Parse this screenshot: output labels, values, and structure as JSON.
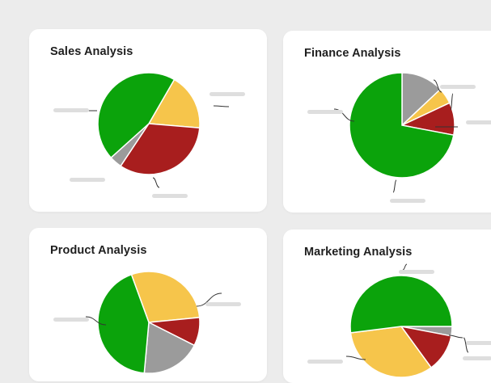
{
  "colors": {
    "green": "#0ba30b",
    "yellow": "#f6c54b",
    "red": "#a81e1e",
    "gray": "#9b9b9b",
    "label_placeholder": "#dedede",
    "leader_line": "#333333"
  },
  "chart_data": [
    {
      "type": "pie",
      "title": "Sales Analysis",
      "slices": [
        {
          "value": 18,
          "color": "yellow"
        },
        {
          "value": 33,
          "color": "red"
        },
        {
          "value": 4,
          "color": "gray"
        },
        {
          "value": 45,
          "color": "green"
        }
      ]
    },
    {
      "type": "pie",
      "title": "Finance Analysis",
      "slices": [
        {
          "value": 13,
          "color": "gray"
        },
        {
          "value": 5,
          "color": "yellow"
        },
        {
          "value": 10,
          "color": "red"
        },
        {
          "value": 72,
          "color": "green"
        }
      ]
    },
    {
      "type": "pie",
      "title": "Product Analysis",
      "slices": [
        {
          "value": 29,
          "color": "yellow"
        },
        {
          "value": 9,
          "color": "red"
        },
        {
          "value": 19,
          "color": "gray"
        },
        {
          "value": 43,
          "color": "green"
        }
      ]
    },
    {
      "type": "pie",
      "title": "Marketing Analysis",
      "slices": [
        {
          "value": 3,
          "color": "gray"
        },
        {
          "value": 12,
          "color": "red"
        },
        {
          "value": 33,
          "color": "yellow"
        },
        {
          "value": 52,
          "color": "green"
        }
      ]
    }
  ]
}
